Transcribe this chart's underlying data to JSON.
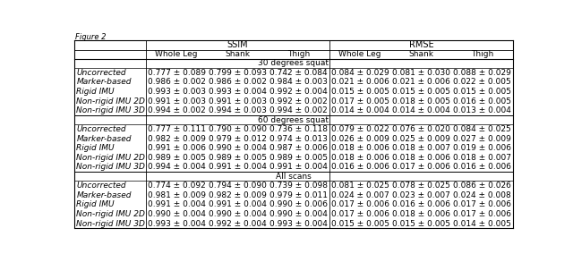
{
  "sections": [
    {
      "section_title": "30 degrees squat",
      "rows": [
        [
          "Uncorrected",
          "0.777 ± 0.089",
          "0.799 ± 0.093",
          "0.742 ± 0.084",
          "0.084 ± 0.029",
          "0.081 ± 0.030",
          "0.088 ± 0.029"
        ],
        [
          "Marker-based",
          "0.986 ± 0.002",
          "0.986 ± 0.002",
          "0.984 ± 0.003",
          "0.021 ± 0.006",
          "0.021 ± 0.006",
          "0.022 ± 0.005"
        ],
        [
          "Rigid IMU",
          "0.993 ± 0.003",
          "0.993 ± 0.004",
          "0.992 ± 0.004",
          "0.015 ± 0.005",
          "0.015 ± 0.005",
          "0.015 ± 0.005"
        ],
        [
          "Non-rigid IMU 2D",
          "0.991 ± 0.003",
          "0.991 ± 0.003",
          "0.992 ± 0.002",
          "0.017 ± 0.005",
          "0.018 ± 0.005",
          "0.016 ± 0.005"
        ],
        [
          "Non-rigid IMU 3D",
          "0.994 ± 0.002",
          "0.994 ± 0.003",
          "0.994 ± 0.002",
          "0.014 ± 0.004",
          "0.014 ± 0.004",
          "0.013 ± 0.004"
        ]
      ]
    },
    {
      "section_title": "60 degrees squat",
      "rows": [
        [
          "Uncorrected",
          "0.777 ± 0.111",
          "0.790 ± 0.090",
          "0.736 ± 0.118",
          "0.079 ± 0.022",
          "0.076 ± 0.020",
          "0.084 ± 0.025"
        ],
        [
          "Marker-based",
          "0.982 ± 0.009",
          "0.979 ± 0.012",
          "0.974 ± 0.013",
          "0.026 ± 0.009",
          "0.025 ± 0.009",
          "0.027 ± 0.009"
        ],
        [
          "Rigid IMU",
          "0.991 ± 0.006",
          "0.990 ± 0.004",
          "0.987 ± 0.006",
          "0.018 ± 0.006",
          "0.018 ± 0.007",
          "0.019 ± 0.006"
        ],
        [
          "Non-rigid IMU 2D",
          "0.989 ± 0.005",
          "0.989 ± 0.005",
          "0.989 ± 0.005",
          "0.018 ± 0.006",
          "0.018 ± 0.006",
          "0.018 ± 0.007"
        ],
        [
          "Non-rigid IMU 3D",
          "0.994 ± 0.004",
          "0.991 ± 0.004",
          "0.991 ± 0.004",
          "0.016 ± 0.006",
          "0.017 ± 0.006",
          "0.016 ± 0.006"
        ]
      ]
    },
    {
      "section_title": "All scans",
      "rows": [
        [
          "Uncorrected",
          "0.774 ± 0.092",
          "0.794 ± 0.090",
          "0.739 ± 0.098",
          "0.081 ± 0.025",
          "0.078 ± 0.025",
          "0.086 ± 0.026"
        ],
        [
          "Marker-based",
          "0.981 ± 0.009",
          "0.982 ± 0.009",
          "0.979 ± 0.011",
          "0.024 ± 0.007",
          "0.023 ± 0.007",
          "0.024 ± 0.008"
        ],
        [
          "Rigid IMU",
          "0.991 ± 0.004",
          "0.991 ± 0.004",
          "0.990 ± 0.006",
          "0.017 ± 0.006",
          "0.016 ± 0.006",
          "0.017 ± 0.006"
        ],
        [
          "Non-rigid IMU 2D",
          "0.990 ± 0.004",
          "0.990 ± 0.004",
          "0.990 ± 0.004",
          "0.017 ± 0.006",
          "0.018 ± 0.006",
          "0.017 ± 0.006"
        ],
        [
          "Non-rigid IMU 3D",
          "0.993 ± 0.004",
          "0.992 ± 0.004",
          "0.993 ± 0.004",
          "0.015 ± 0.005",
          "0.015 ± 0.005",
          "0.014 ± 0.005"
        ]
      ]
    }
  ],
  "col_labels": [
    "Whole Leg",
    "Shank",
    "Thigh",
    "Whole Leg",
    "Shank",
    "Thigh"
  ],
  "group_labels": [
    "SSIM",
    "RMSE"
  ],
  "figure_label": "Figure 2",
  "bg_color": "#ffffff",
  "text_color": "#000000",
  "font_size": 6.5,
  "header_font_size": 7.0
}
